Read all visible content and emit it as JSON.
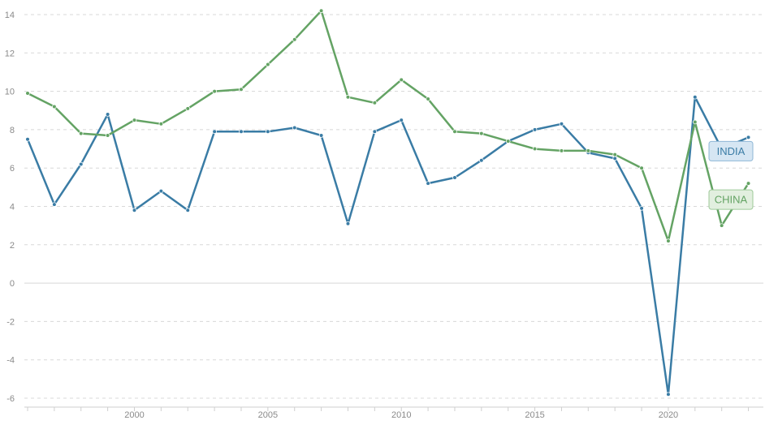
{
  "chart_data": {
    "type": "line",
    "title": "",
    "xlabel": "",
    "ylabel": "",
    "xlim": [
      1996,
      2023.5
    ],
    "ylim": [
      -6,
      14
    ],
    "y_ticks": [
      -6,
      -4,
      -2,
      0,
      2,
      4,
      6,
      8,
      10,
      12,
      14
    ],
    "x_ticks": [
      2000,
      2005,
      2010,
      2015,
      2020
    ],
    "grid": "horizontal dashed",
    "legend": "inline labels at right end",
    "x": [
      1996,
      1997,
      1998,
      1999,
      2000,
      2001,
      2002,
      2003,
      2004,
      2005,
      2006,
      2007,
      2008,
      2009,
      2010,
      2011,
      2012,
      2013,
      2014,
      2015,
      2016,
      2017,
      2018,
      2019,
      2020,
      2021,
      2022,
      2023
    ],
    "series": [
      {
        "name": "INDIA",
        "color": "#3a7ca5",
        "label_bg": "#d6e6f3",
        "label_border": "#8fb7d6",
        "values": [
          7.5,
          4.1,
          6.2,
          8.8,
          3.8,
          4.8,
          3.8,
          7.9,
          7.9,
          7.9,
          8.1,
          7.7,
          3.1,
          7.9,
          8.5,
          5.2,
          5.5,
          6.4,
          7.4,
          8.0,
          8.3,
          6.8,
          6.5,
          3.9,
          -5.8,
          9.7,
          7.0,
          7.6
        ]
      },
      {
        "name": "CHINA",
        "color": "#64a364",
        "label_bg": "#e2efdf",
        "label_border": "#9fca9a",
        "values": [
          9.9,
          9.2,
          7.8,
          7.7,
          8.5,
          8.3,
          9.1,
          10.0,
          10.1,
          11.4,
          12.7,
          14.2,
          9.7,
          9.4,
          10.6,
          9.6,
          7.9,
          7.8,
          7.4,
          7.0,
          6.9,
          6.9,
          6.7,
          6.0,
          2.2,
          8.4,
          3.0,
          5.2
        ]
      }
    ]
  }
}
